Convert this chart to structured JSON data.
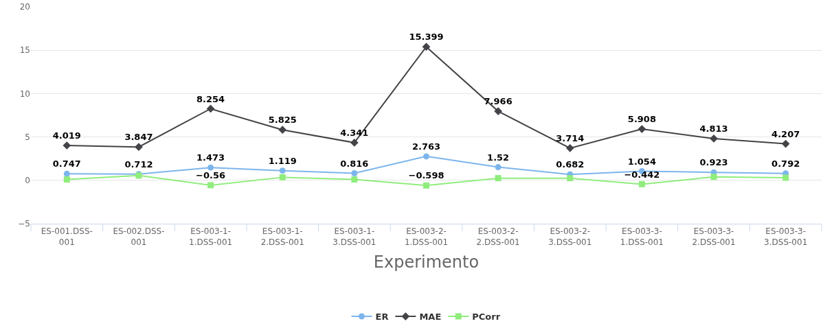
{
  "chart_data": {
    "type": "line",
    "xlabel": "Experimento",
    "categories": [
      "ES-001.DSS-001",
      "ES-002.DSS-001",
      "ES-003-1-1.DSS-001",
      "ES-003-1-2.DSS-001",
      "ES-003-1-3.DSS-001",
      "ES-003-2-1.DSS-001",
      "ES-003-2-2.DSS-001",
      "ES-003-2-3.DSS-001",
      "ES-003-3-1.DSS-001",
      "ES-003-3-2.DSS-001",
      "ES-003-3-3.DSS-001"
    ],
    "series": [
      {
        "name": "ER",
        "color": "#7cb5ec",
        "marker": "circle",
        "values": [
          0.747,
          0.712,
          1.473,
          1.119,
          0.816,
          2.763,
          1.52,
          0.682,
          1.054,
          0.923,
          0.792
        ],
        "value_labels": [
          "0.747",
          "0.712",
          "1.473",
          "1.119",
          "0.816",
          "2.763",
          "1.52",
          "0.682",
          "1.054",
          "0.923",
          "0.792"
        ]
      },
      {
        "name": "MAE",
        "color": "#434348",
        "marker": "diamond",
        "values": [
          4.019,
          3.847,
          8.254,
          5.825,
          4.341,
          15.399,
          7.966,
          3.714,
          5.908,
          4.813,
          4.207
        ],
        "value_labels": [
          "4.019",
          "3.847",
          "8.254",
          "5.825",
          "4.341",
          "15.399",
          "7.966",
          "3.714",
          "5.908",
          "4.813",
          "4.207"
        ]
      },
      {
        "name": "PCorr",
        "color": "#90ed7d",
        "marker": "square",
        "values": [
          0.1,
          0.55,
          -0.56,
          0.35,
          0.1,
          -0.598,
          0.25,
          0.25,
          -0.442,
          0.4,
          0.3
        ],
        "value_labels": [
          null,
          null,
          "−0.56",
          null,
          null,
          "−0.598",
          null,
          null,
          "−0.442",
          null,
          null
        ]
      }
    ],
    "ylim": [
      -5,
      20
    ],
    "yticks": [
      -5,
      0,
      5,
      10,
      15,
      20
    ],
    "grid": "y",
    "legend": "bottom"
  }
}
